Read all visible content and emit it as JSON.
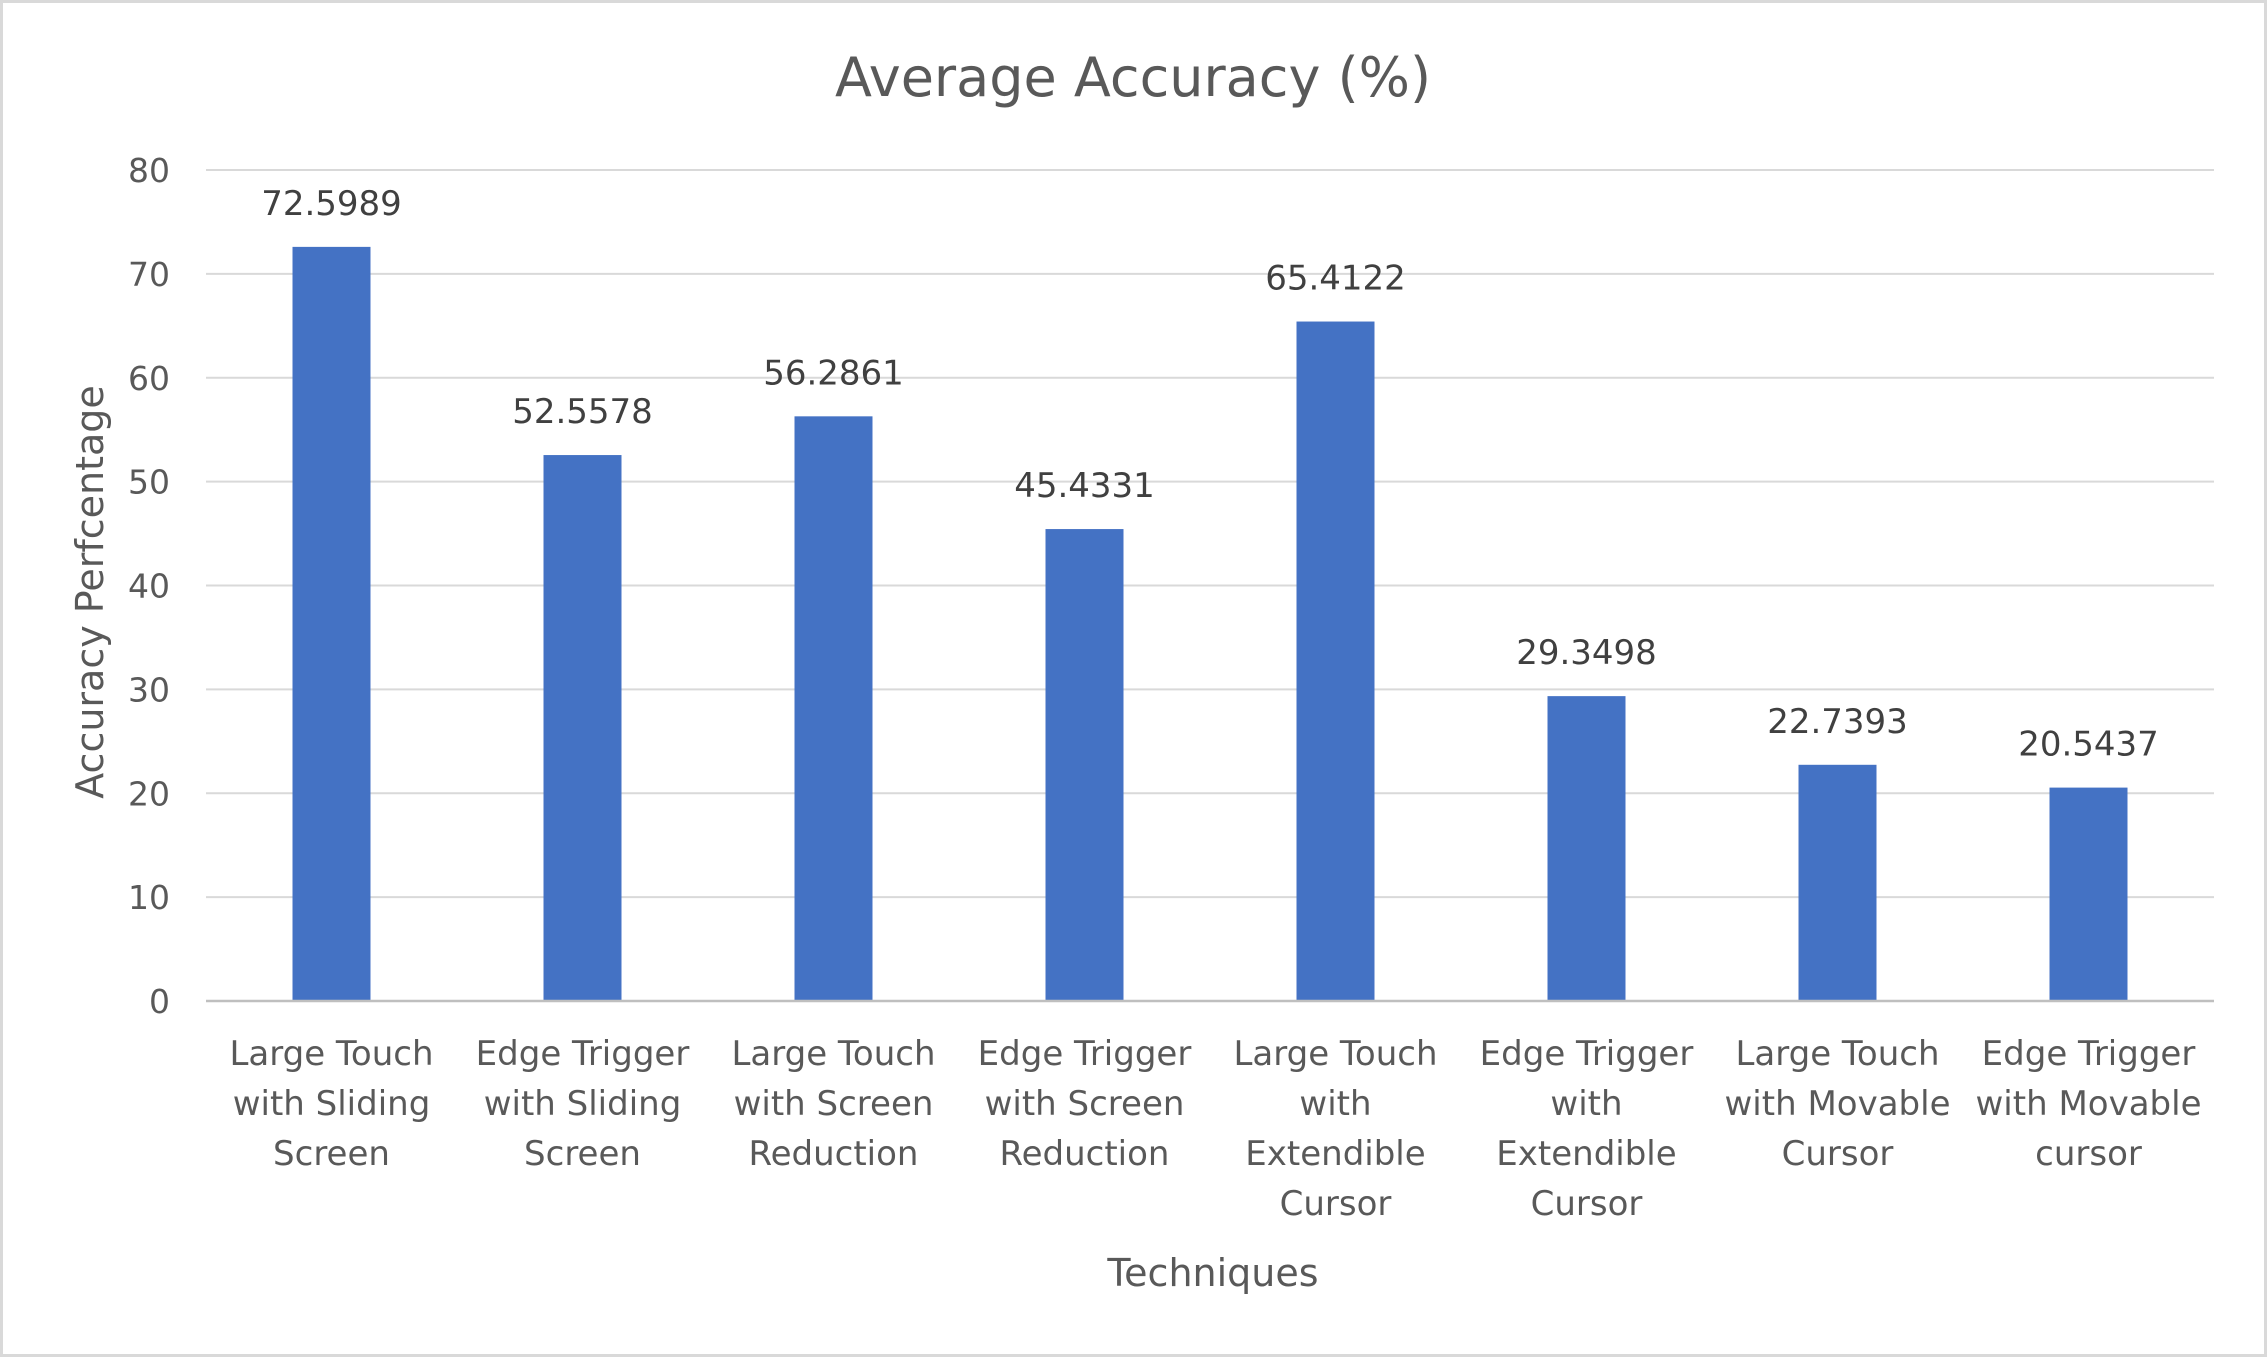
{
  "chart_data": {
    "type": "bar",
    "title": "Average Accuracy (%)",
    "xlabel": "Techniques",
    "ylabel": "Accuracy Perfcentage",
    "categories": [
      "Large Touch with Sliding Screen",
      "Edge Trigger with Sliding Screen",
      "Large Touch with Screen Reduction",
      "Edge Trigger with Screen Reduction",
      "Large Touch with Extendible Cursor",
      "Edge Trigger with Extendible Cursor",
      "Large Touch with Movable Cursor",
      "Edge Trigger with Movable cursor"
    ],
    "category_lines": [
      [
        "Large Touch",
        "with Sliding",
        "Screen"
      ],
      [
        "Edge Trigger",
        "with Sliding",
        "Screen"
      ],
      [
        "Large Touch",
        "with Screen",
        "Reduction"
      ],
      [
        "Edge Trigger",
        "with Screen",
        "Reduction"
      ],
      [
        "Large Touch",
        "with",
        "Extendible",
        "Cursor"
      ],
      [
        "Edge Trigger",
        "with",
        "Extendible",
        "Cursor"
      ],
      [
        "Large Touch",
        "with Movable",
        "Cursor"
      ],
      [
        "Edge Trigger",
        "with Movable",
        "cursor"
      ]
    ],
    "values": [
      72.5989,
      52.5578,
      56.2861,
      45.4331,
      65.4122,
      29.3498,
      22.7393,
      20.5437
    ],
    "data_labels": [
      "72.5989",
      "52.5578",
      "56.2861",
      "45.4331",
      "65.4122",
      "29.3498",
      "22.7393",
      "20.5437"
    ],
    "ylim": [
      0,
      80
    ],
    "yticks": [
      0,
      10,
      20,
      30,
      40,
      50,
      60,
      70,
      80
    ],
    "ytick_labels": [
      "0",
      "10",
      "20",
      "30",
      "40",
      "50",
      "60",
      "70",
      "80"
    ],
    "grid": true,
    "legend": "none",
    "colors": {
      "bar": "#4472C4",
      "grid": "#D9D9D9",
      "axis": "#BFBFBF",
      "text": "#595959",
      "data_label": "#404040",
      "border": "#D9D9D9"
    }
  }
}
